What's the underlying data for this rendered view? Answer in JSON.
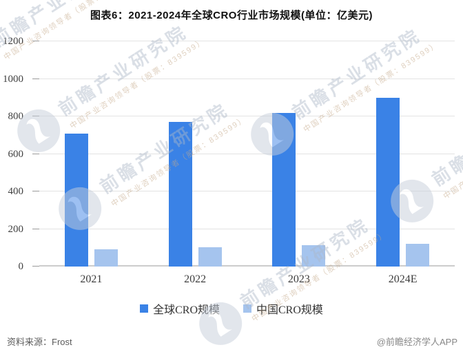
{
  "title": "图表6：2021-2024年全球CRO行业市场规模(单位：亿美元)",
  "chart_data": {
    "type": "bar",
    "categories": [
      "2021",
      "2022",
      "2023",
      "2024E"
    ],
    "series": [
      {
        "name": "全球CRO规模",
        "color": "#3A82E6",
        "values": [
          710,
          772,
          820,
          900
        ]
      },
      {
        "name": "中国CRO规模",
        "color": "#A5C4EE",
        "values": [
          90,
          104,
          114,
          120
        ]
      }
    ],
    "title": "图表6：2021-2024年全球CRO行业市场规模(单位：亿美元)",
    "xlabel": "",
    "ylabel": "",
    "ylim": [
      0,
      1200
    ],
    "ytick_step": 200,
    "grid": true,
    "legend_position": "bottom"
  },
  "footer": {
    "source_label": "资料来源：",
    "source_value": "Frost",
    "credit": "@前瞻经济学人APP"
  },
  "watermark": {
    "brand": "前瞻产业研究院",
    "tagline": "中国产业咨询领导者（股票：839599）"
  },
  "colors": {
    "primary_bar": "#3A82E6",
    "secondary_bar": "#A5C4EE",
    "gridline": "#E3E3E3",
    "axis_line": "#CCCCCC",
    "text": "#3C3C3C"
  }
}
